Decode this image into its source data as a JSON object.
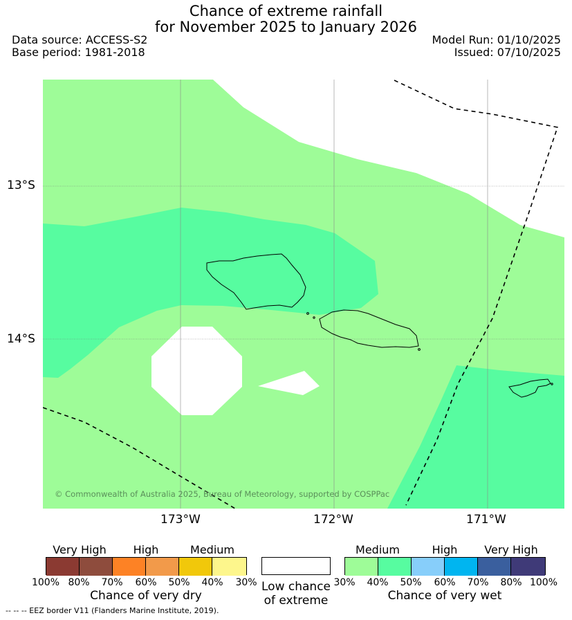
{
  "header": {
    "title_line1": "Chance of extreme rainfall",
    "title_line2": "for November 2025 to January 2026",
    "data_source": "Data source: ACCESS-S2",
    "base_period": "Base period: 1981-2018",
    "model_run": "Model Run: 01/10/2025",
    "issued": "Issued: 07/10/2025"
  },
  "map": {
    "lat_labels": [
      "13°S",
      "14°S"
    ],
    "lon_labels": [
      "173°W",
      "172°W",
      "171°W"
    ],
    "copyright": "© Commonwealth of Australia 2025, Bureau of Meteorology, supported by COSPPac",
    "colors": {
      "medium_wet_30_40": "#9efc98",
      "medium_wet_40_50": "#57fca0",
      "low": "#ffffff"
    }
  },
  "legend": {
    "dry": {
      "levels": [
        "Very High",
        "High",
        "Medium"
      ],
      "ticks": [
        "100%",
        "80%",
        "70%",
        "60%",
        "50%",
        "40%",
        "30%"
      ],
      "caption": "Chance of very dry",
      "colors": [
        "#8b3a32",
        "#8e4c3d",
        "#fd8225",
        "#f29a4a",
        "#f1c80b",
        "#fdf68c"
      ]
    },
    "low": {
      "caption_line1": "Low chance",
      "caption_line2": "of extreme"
    },
    "wet": {
      "levels": [
        "Medium",
        "High",
        "Very High"
      ],
      "ticks": [
        "30%",
        "40%",
        "50%",
        "60%",
        "70%",
        "80%",
        "100%"
      ],
      "caption": "Chance of very wet",
      "colors": [
        "#9efc98",
        "#57fca0",
        "#87cefa",
        "#00b5f0",
        "#3a5f9e",
        "#3f3a78"
      ]
    }
  },
  "footer": {
    "eez_note": "--  --  -- EEZ border V11 (Flanders Marine Institute, 2019)."
  }
}
